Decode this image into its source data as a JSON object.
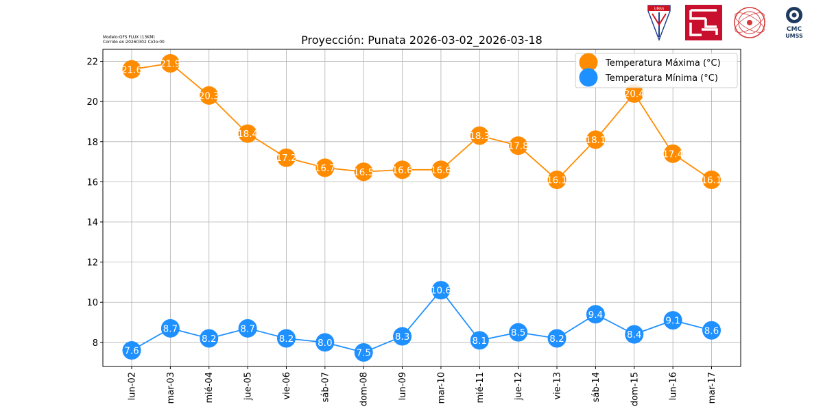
{
  "header": {
    "model_line": "Modelo:GFS FLUX (13KM)",
    "run_line": "Corrido en:20260302 Ciclo:00"
  },
  "logos": {
    "umss_shield_label": "UMSS",
    "cmc_line1": "CMC",
    "cmc_line2": "UMSS"
  },
  "chart_data": {
    "type": "line",
    "title": "Proyección: Punata 2026-03-02_2026-03-18",
    "xlabel": "",
    "ylabel": "",
    "categories": [
      "lun-02",
      "mar-03",
      "mié-04",
      "jue-05",
      "vie-06",
      "sáb-07",
      "dom-08",
      "lun-09",
      "mar-10",
      "mié-11",
      "jue-12",
      "vie-13",
      "sáb-14",
      "dom-15",
      "lun-16",
      "mar-17"
    ],
    "ylim": [
      6.8,
      22.6
    ],
    "yticks": [
      8,
      10,
      12,
      14,
      16,
      18,
      20,
      22
    ],
    "grid": true,
    "legend_position": "top-right",
    "series": [
      {
        "name": "Temperatura Máxima  (°C)",
        "color": "#ff8c00",
        "values": [
          21.6,
          21.9,
          20.3,
          18.4,
          17.2,
          16.7,
          16.5,
          16.6,
          16.6,
          18.3,
          17.8,
          16.1,
          18.1,
          20.4,
          17.4,
          16.1
        ]
      },
      {
        "name": "Temperatura Mínima  (°C)",
        "color": "#1e90ff",
        "values": [
          7.6,
          8.7,
          8.2,
          8.7,
          8.2,
          8.0,
          7.5,
          8.3,
          10.6,
          8.1,
          8.5,
          8.2,
          9.4,
          8.4,
          9.1,
          8.6
        ]
      }
    ]
  }
}
